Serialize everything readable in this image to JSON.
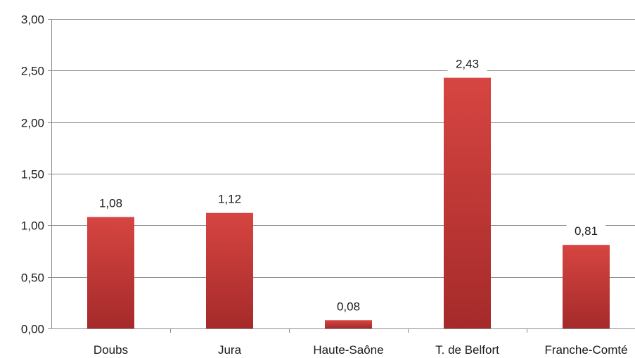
{
  "chart_data": {
    "type": "bar",
    "categories": [
      "Doubs",
      "Jura",
      "Haute-Saône",
      "T. de Belfort",
      "Franche-Comté"
    ],
    "values": [
      1.08,
      1.12,
      0.08,
      2.43,
      0.81
    ],
    "value_labels": [
      "1,08",
      "1,12",
      "0,08",
      "2,43",
      "0,81"
    ],
    "title": "",
    "xlabel": "",
    "ylabel": "",
    "ylim": [
      0,
      3
    ],
    "yticks": [
      0,
      0.5,
      1,
      1.5,
      2,
      2.5,
      3
    ],
    "ytick_labels": [
      "0,00",
      "0,50",
      "1,00",
      "1,50",
      "2,00",
      "2,50",
      "3,00"
    ],
    "grid": true,
    "legend": "none",
    "bar_color_top": "#d64541",
    "bar_color_bottom": "#a52a2a"
  }
}
